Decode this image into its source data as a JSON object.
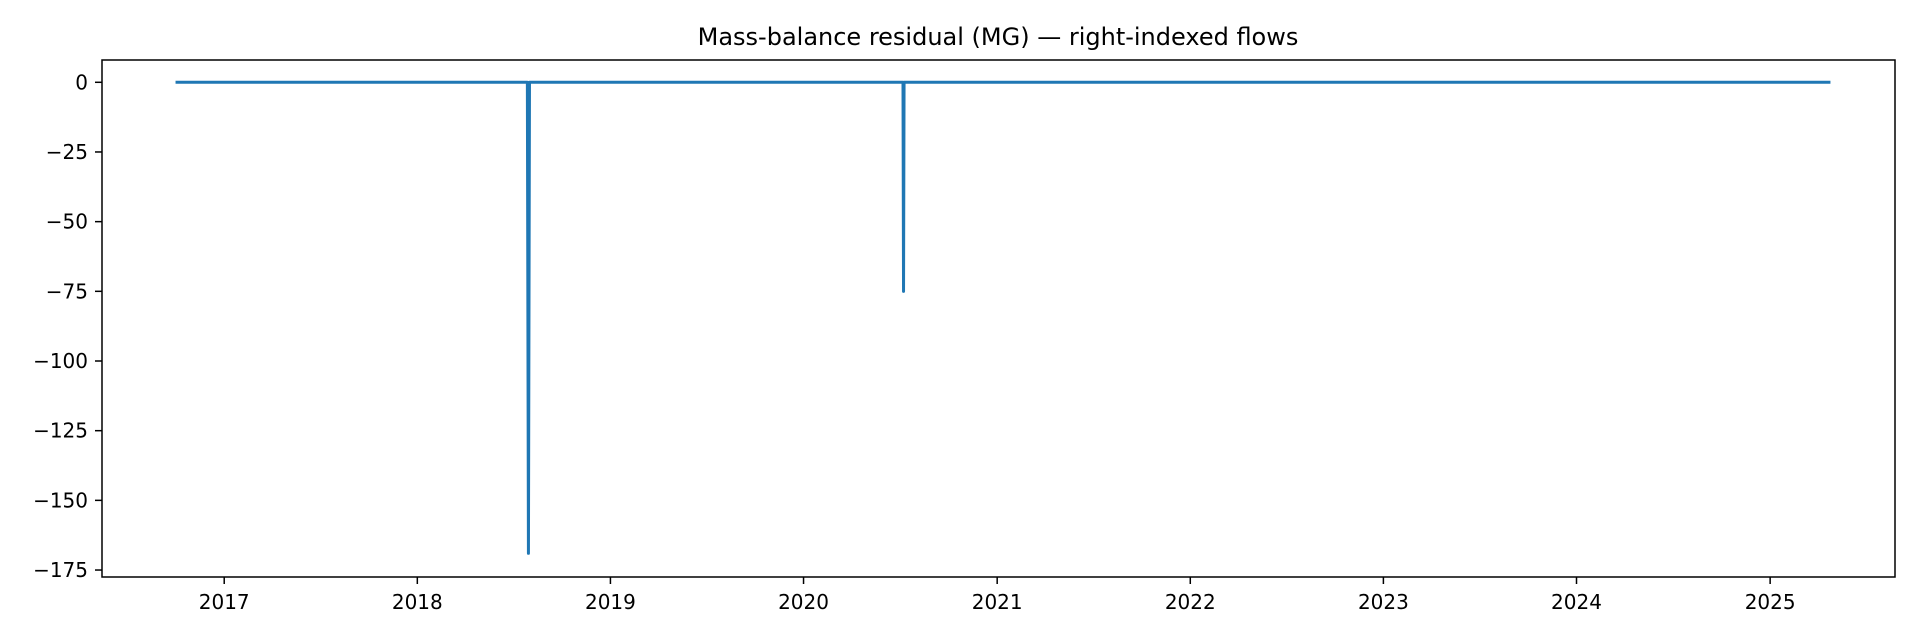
{
  "chart_data": {
    "type": "line",
    "title": "Mass-balance residual (MG) — right-indexed flows",
    "xlabel": "",
    "ylabel": "",
    "x_axis": {
      "kind": "date",
      "range": [
        "2016-05-15",
        "2025-08-25"
      ],
      "ticks": [
        {
          "value": "2017-01-01",
          "label": "2017"
        },
        {
          "value": "2018-01-01",
          "label": "2018"
        },
        {
          "value": "2019-01-01",
          "label": "2019"
        },
        {
          "value": "2020-01-01",
          "label": "2020"
        },
        {
          "value": "2021-01-01",
          "label": "2021"
        },
        {
          "value": "2022-01-01",
          "label": "2022"
        },
        {
          "value": "2023-01-01",
          "label": "2023"
        },
        {
          "value": "2024-01-01",
          "label": "2024"
        },
        {
          "value": "2025-01-01",
          "label": "2025"
        }
      ]
    },
    "y_axis": {
      "range": [
        -177.5,
        8
      ],
      "ticks": [
        {
          "value": 0,
          "label": "0"
        },
        {
          "value": -25,
          "label": "−25"
        },
        {
          "value": -50,
          "label": "−50"
        },
        {
          "value": -75,
          "label": "−75"
        },
        {
          "value": -100,
          "label": "−100"
        },
        {
          "value": -125,
          "label": "−125"
        },
        {
          "value": -150,
          "label": "−150"
        },
        {
          "value": -175,
          "label": "−175"
        }
      ]
    },
    "grid": false,
    "legend": "none",
    "series": [
      {
        "color": "#1f77b4",
        "points": [
          {
            "x": "2016-10-01",
            "y": 0
          },
          {
            "x": "2018-07-28",
            "y": 0
          },
          {
            "x": "2018-07-30",
            "y": -169
          },
          {
            "x": "2018-08-01",
            "y": 0
          },
          {
            "x": "2020-07-07",
            "y": 0
          },
          {
            "x": "2020-07-08",
            "y": -75
          },
          {
            "x": "2020-07-09",
            "y": 0
          },
          {
            "x": "2025-04-25",
            "y": 0
          }
        ]
      }
    ]
  }
}
